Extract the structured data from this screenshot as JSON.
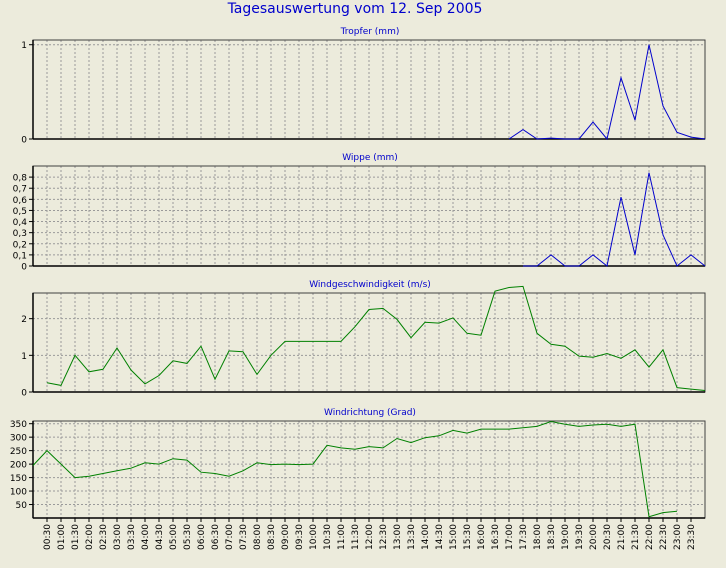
{
  "page_title": "Tagesauswertung vom 12. Sep 2005",
  "chart_data": [
    {
      "type": "line",
      "title": "Tropfer (mm)",
      "color": "#0000cc",
      "ylim": [
        0,
        1.05
      ],
      "yticks": [
        0,
        1
      ],
      "ytick_labels": [
        "0",
        "1"
      ],
      "grid": true,
      "x_unit": "slot (0 = 00:00, 47 = 23:30)",
      "points": [
        [
          33,
          0
        ],
        [
          34,
          0.1
        ],
        [
          35,
          0
        ],
        [
          36,
          0.01
        ],
        [
          37,
          0
        ],
        [
          38,
          0
        ],
        [
          39,
          0.18
        ],
        [
          40,
          0
        ],
        [
          41,
          0.65
        ],
        [
          42,
          0.2
        ],
        [
          43,
          1.0
        ],
        [
          44,
          0.35
        ],
        [
          45,
          0.07
        ],
        [
          46,
          0.02
        ],
        [
          47,
          0
        ]
      ]
    },
    {
      "type": "line",
      "title": "Wippe (mm)",
      "color": "#0000cc",
      "ylim": [
        0,
        0.9
      ],
      "yticks": [
        0,
        0.1,
        0.2,
        0.3,
        0.4,
        0.5,
        0.6,
        0.7,
        0.8
      ],
      "ytick_labels": [
        "0",
        "0,1",
        "0,2",
        "0,3",
        "0,4",
        "0,5",
        "0,6",
        "0,7",
        "0,8"
      ],
      "grid": true,
      "points": [
        [
          34,
          0
        ],
        [
          35,
          0
        ],
        [
          36,
          0.1
        ],
        [
          37,
          0
        ],
        [
          38,
          0
        ],
        [
          39,
          0.1
        ],
        [
          40,
          0
        ],
        [
          41,
          0.62
        ],
        [
          42,
          0.1
        ],
        [
          43,
          0.84
        ],
        [
          44,
          0.28
        ],
        [
          45,
          0
        ],
        [
          46,
          0.1
        ],
        [
          47,
          0
        ]
      ]
    },
    {
      "type": "line",
      "title": "Windgeschwindigkeit (m/s)",
      "color": "#008000",
      "ylim": [
        0,
        2.7
      ],
      "yticks": [
        0,
        1,
        2
      ],
      "ytick_labels": [
        "0",
        "1",
        "2"
      ],
      "grid": true,
      "points": [
        [
          0,
          0.25
        ],
        [
          1,
          0.18
        ],
        [
          2,
          1.0
        ],
        [
          3,
          0.55
        ],
        [
          4,
          0.62
        ],
        [
          5,
          1.2
        ],
        [
          6,
          0.6
        ],
        [
          7,
          0.22
        ],
        [
          8,
          0.45
        ],
        [
          9,
          0.85
        ],
        [
          10,
          0.78
        ],
        [
          11,
          1.25
        ],
        [
          12,
          0.35
        ],
        [
          13,
          1.12
        ],
        [
          14,
          1.1
        ],
        [
          15,
          0.48
        ],
        [
          16,
          1.0
        ],
        [
          17,
          1.38
        ],
        [
          18,
          1.38
        ],
        [
          19,
          1.38
        ],
        [
          20,
          1.38
        ],
        [
          21,
          1.38
        ],
        [
          22,
          1.78
        ],
        [
          23,
          2.25
        ],
        [
          24,
          2.28
        ],
        [
          25,
          1.98
        ],
        [
          26,
          1.48
        ],
        [
          27,
          1.9
        ],
        [
          28,
          1.88
        ],
        [
          29,
          2.02
        ],
        [
          30,
          1.6
        ],
        [
          31,
          1.55
        ],
        [
          32,
          2.75
        ],
        [
          33,
          2.85
        ],
        [
          34,
          2.88
        ],
        [
          35,
          1.6
        ],
        [
          36,
          1.3
        ],
        [
          37,
          1.25
        ],
        [
          38,
          0.98
        ],
        [
          39,
          0.95
        ],
        [
          40,
          1.05
        ],
        [
          41,
          0.92
        ],
        [
          42,
          1.15
        ],
        [
          43,
          0.68
        ],
        [
          44,
          1.15
        ],
        [
          45,
          0.12
        ],
        [
          46,
          0.08
        ],
        [
          47,
          0.04
        ]
      ]
    },
    {
      "type": "line",
      "title": "Windrichtung (Grad)",
      "color": "#008000",
      "ylim": [
        0,
        360
      ],
      "yticks": [
        50,
        100,
        150,
        200,
        250,
        300,
        350
      ],
      "ytick_labels": [
        "50",
        "100",
        "150",
        "200",
        "250",
        "300",
        "350"
      ],
      "grid": true,
      "points": [
        [
          -1,
          195
        ],
        [
          0,
          250
        ],
        [
          1,
          200
        ],
        [
          2,
          150
        ],
        [
          3,
          155
        ],
        [
          4,
          165
        ],
        [
          5,
          175
        ],
        [
          6,
          185
        ],
        [
          7,
          205
        ],
        [
          8,
          200
        ],
        [
          9,
          220
        ],
        [
          10,
          215
        ],
        [
          11,
          170
        ],
        [
          12,
          165
        ],
        [
          13,
          155
        ],
        [
          14,
          175
        ],
        [
          15,
          205
        ],
        [
          16,
          198
        ],
        [
          17,
          200
        ],
        [
          18,
          198
        ],
        [
          19,
          200
        ],
        [
          20,
          270
        ],
        [
          21,
          260
        ],
        [
          22,
          255
        ],
        [
          23,
          265
        ],
        [
          24,
          260
        ],
        [
          25,
          295
        ],
        [
          26,
          280
        ],
        [
          27,
          298
        ],
        [
          28,
          305
        ],
        [
          29,
          325
        ],
        [
          30,
          315
        ],
        [
          31,
          330
        ],
        [
          32,
          330
        ],
        [
          33,
          330
        ],
        [
          34,
          335
        ],
        [
          35,
          340
        ],
        [
          36,
          358
        ],
        [
          37,
          348
        ],
        [
          38,
          340
        ],
        [
          39,
          345
        ],
        [
          40,
          348
        ],
        [
          41,
          340
        ],
        [
          42,
          348
        ],
        [
          43,
          5
        ],
        [
          44,
          20
        ],
        [
          45,
          25
        ]
      ]
    }
  ],
  "x_tick_labels": [
    "00:30",
    "01:00",
    "01:30",
    "02:00",
    "02:30",
    "03:00",
    "03:30",
    "04:00",
    "04:30",
    "05:00",
    "05:30",
    "06:00",
    "06:30",
    "07:00",
    "07:30",
    "08:00",
    "08:30",
    "09:00",
    "09:30",
    "10:00",
    "10:30",
    "11:00",
    "11:30",
    "12:00",
    "12:30",
    "13:00",
    "13:30",
    "14:00",
    "14:30",
    "15:00",
    "15:30",
    "16:00",
    "16:30",
    "17:00",
    "17:30",
    "18:00",
    "18:30",
    "19:00",
    "19:30",
    "20:00",
    "20:30",
    "21:00",
    "21:30",
    "22:00",
    "22:30",
    "23:00",
    "23:30"
  ]
}
